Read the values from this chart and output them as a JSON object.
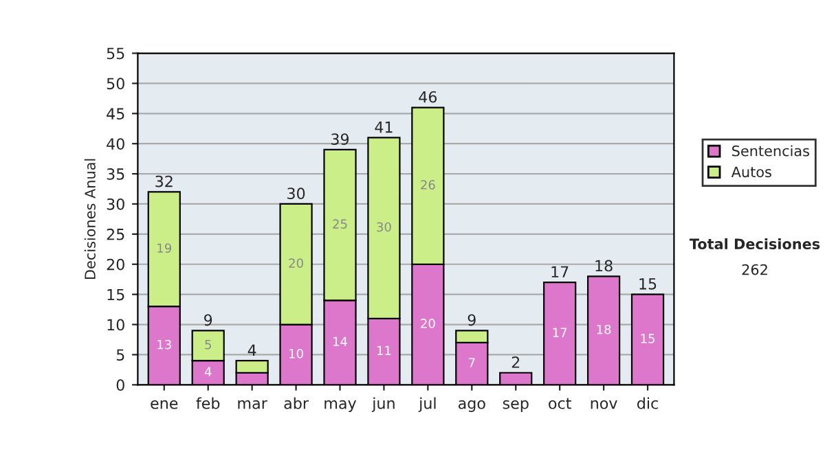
{
  "chart_data": {
    "type": "bar",
    "stacked": true,
    "ylabel": "Decisiones Anual",
    "categories": [
      "ene",
      "feb",
      "mar",
      "abr",
      "may",
      "jun",
      "jul",
      "ago",
      "sep",
      "oct",
      "nov",
      "dic"
    ],
    "series": [
      {
        "name": "Sentencias",
        "color": "#dd77cc",
        "values": [
          13,
          4,
          2,
          10,
          14,
          11,
          20,
          7,
          2,
          17,
          18,
          15
        ],
        "value_labels": [
          "13",
          "4",
          null,
          "10",
          "14",
          "11",
          "20",
          "7",
          null,
          "17",
          "18",
          "15"
        ]
      },
      {
        "name": "Autos",
        "color": "#ccee88",
        "values": [
          19,
          5,
          2,
          20,
          25,
          30,
          26,
          2,
          null,
          null,
          null,
          null
        ],
        "value_labels": [
          "19",
          "5",
          null,
          "20",
          "25",
          "30",
          "26",
          null,
          null,
          null,
          null,
          null
        ]
      }
    ],
    "totals": [
      "32",
      "9",
      "4",
      "30",
      "39",
      "41",
      "46",
      "9",
      "2",
      "17",
      "18",
      "15"
    ],
    "ylim": [
      0,
      55
    ],
    "yticks": [
      0,
      5,
      10,
      15,
      20,
      25,
      30,
      35,
      40,
      45,
      50,
      55
    ],
    "grid": "y",
    "legend": "right",
    "annotations": [
      "Total Decisiones",
      "262"
    ]
  }
}
